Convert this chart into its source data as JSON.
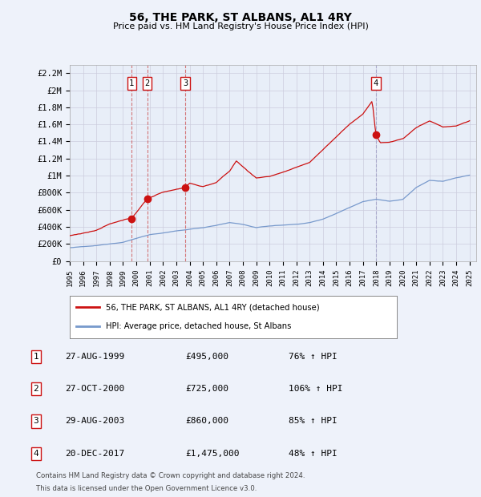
{
  "title": "56, THE PARK, ST ALBANS, AL1 4RY",
  "subtitle": "Price paid vs. HM Land Registry's House Price Index (HPI)",
  "background_color": "#eef2fa",
  "plot_bg_color": "#e8eef8",
  "hpi_color": "#7799cc",
  "price_color": "#cc1111",
  "grid_color": "#ccccdd",
  "ylim": [
    0,
    2300000
  ],
  "yticks": [
    0,
    200000,
    400000,
    600000,
    800000,
    1000000,
    1200000,
    1400000,
    1600000,
    1800000,
    2000000,
    2200000
  ],
  "ytick_labels": [
    "£0",
    "£200K",
    "£400K",
    "£600K",
    "£800K",
    "£1M",
    "£1.2M",
    "£1.4M",
    "£1.6M",
    "£1.8M",
    "£2M",
    "£2.2M"
  ],
  "xlim": [
    1995,
    2025.5
  ],
  "sales": [
    {
      "label": "1",
      "date": "1999-08-27",
      "price": 495000,
      "x": 1999.65
    },
    {
      "label": "2",
      "date": "2000-10-27",
      "price": 725000,
      "x": 2000.82
    },
    {
      "label": "3",
      "date": "2003-08-29",
      "price": 860000,
      "x": 2003.66
    },
    {
      "label": "4",
      "date": "2017-12-20",
      "price": 1475000,
      "x": 2017.97
    }
  ],
  "legend_line1": "56, THE PARK, ST ALBANS, AL1 4RY (detached house)",
  "legend_line2": "HPI: Average price, detached house, St Albans",
  "table_rows": [
    [
      "1",
      "27-AUG-1999",
      "£495,000",
      "76% ↑ HPI"
    ],
    [
      "2",
      "27-OCT-2000",
      "£725,000",
      "106% ↑ HPI"
    ],
    [
      "3",
      "29-AUG-2003",
      "£860,000",
      "85% ↑ HPI"
    ],
    [
      "4",
      "20-DEC-2017",
      "£1,475,000",
      "48% ↑ HPI"
    ]
  ],
  "footnote1": "Contains HM Land Registry data © Crown copyright and database right 2024.",
  "footnote2": "This data is licensed under the Open Government Licence v3.0."
}
